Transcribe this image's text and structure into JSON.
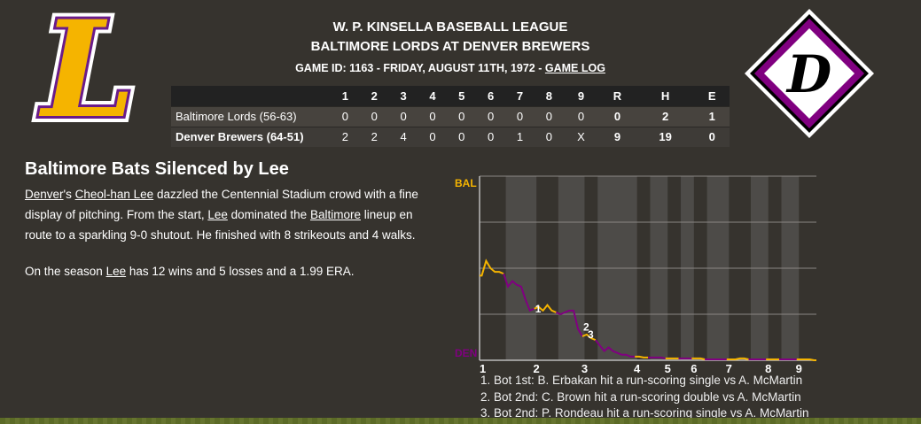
{
  "header": {
    "league": "W. P. KINSELLA BASEBALL LEAGUE",
    "matchup": "BALTIMORE LORDS AT DENVER BREWERS",
    "game_info": "GAME ID: 1163 - FRIDAY, AUGUST 11TH, 1972 - ",
    "game_log_link": "GAME LOG"
  },
  "logos": {
    "away": "L",
    "home": "D"
  },
  "colors": {
    "away": "#f5b400",
    "home": "#800080",
    "background": "#36332e"
  },
  "linescore": {
    "columns": [
      "",
      "1",
      "2",
      "3",
      "4",
      "5",
      "6",
      "7",
      "8",
      "9",
      "R",
      "H",
      "E"
    ],
    "rows": [
      {
        "team": "Baltimore Lords (56-63)",
        "innings": [
          "0",
          "0",
          "0",
          "0",
          "0",
          "0",
          "0",
          "0",
          "0"
        ],
        "R": "0",
        "H": "2",
        "E": "1"
      },
      {
        "team": "Denver Brewers (64-51)",
        "innings": [
          "2",
          "2",
          "4",
          "0",
          "0",
          "0",
          "1",
          "0",
          "X"
        ],
        "R": "9",
        "H": "19",
        "E": "0"
      }
    ]
  },
  "story": {
    "headline": "Baltimore Bats Silenced by Lee",
    "p1": {
      "a": "Denver",
      "b": "'s ",
      "c": "Cheol-han Lee",
      "d": " dazzled the Centennial Stadium crowd with a fine display of pitching. From the start, ",
      "e": "Lee",
      "f": " dominated the ",
      "g": "Baltimore",
      "h": " lineup en route to a sparkling 9-0 shutout. He finished with 8 strikeouts and 4 walks."
    },
    "p2": {
      "a": "On the season ",
      "b": "Lee",
      "c": " has 12 wins and 5 losses and a 1.99 ERA."
    }
  },
  "chart_data": {
    "type": "line",
    "title": "",
    "y_top_label": "BAL",
    "y_bottom_label": "DEN",
    "ylim": [
      0,
      1
    ],
    "grid": true,
    "x_tick_labels": [
      "1",
      "2",
      "3",
      "4",
      "5",
      "6",
      "7",
      "8",
      "9"
    ],
    "half_innings": [
      {
        "inning": 1,
        "half": "top",
        "wp": [
          0.46,
          0.54,
          0.5,
          0.48,
          0.48,
          0.47
        ]
      },
      {
        "inning": 1,
        "half": "bottom",
        "wp": [
          0.4,
          0.43,
          0.41,
          0.4,
          0.33,
          0.27,
          0.28
        ]
      },
      {
        "inning": 2,
        "half": "top",
        "wp": [
          0.29,
          0.27,
          0.3,
          0.27,
          0.26
        ]
      },
      {
        "inning": 2,
        "half": "bottom",
        "wp": [
          0.25,
          0.26,
          0.27,
          0.27,
          0.17,
          0.13
        ]
      },
      {
        "inning": 3,
        "half": "top",
        "wp": [
          0.14,
          0.12,
          0.11
        ]
      },
      {
        "inning": 3,
        "half": "bottom",
        "wp": [
          0.08,
          0.05,
          0.07,
          0.05,
          0.04,
          0.03,
          0.03,
          0.02,
          0.02
        ]
      },
      {
        "inning": 4,
        "half": "top",
        "wp": [
          0.02,
          0.015,
          0.015
        ]
      },
      {
        "inning": 4,
        "half": "bottom",
        "wp": [
          0.015,
          0.015,
          0.015,
          0.01
        ]
      },
      {
        "inning": 5,
        "half": "top",
        "wp": [
          0.01,
          0.01,
          0.01
        ]
      },
      {
        "inning": 5,
        "half": "bottom",
        "wp": [
          0.01,
          0.01,
          0.01
        ]
      },
      {
        "inning": 6,
        "half": "top",
        "wp": [
          0.01,
          0.01,
          0.005
        ]
      },
      {
        "inning": 6,
        "half": "bottom",
        "wp": [
          0.005,
          0.005,
          0.005,
          0.005,
          0.005
        ]
      },
      {
        "inning": 7,
        "half": "top",
        "wp": [
          0.005,
          0.005,
          0.01,
          0.01,
          0.005
        ]
      },
      {
        "inning": 7,
        "half": "bottom",
        "wp": [
          0.005,
          0.005,
          0.005,
          0.005
        ]
      },
      {
        "inning": 8,
        "half": "top",
        "wp": [
          0.005,
          0.005,
          0.005
        ]
      },
      {
        "inning": 8,
        "half": "bottom",
        "wp": [
          0.005,
          0.005,
          0.005,
          0.005
        ]
      },
      {
        "inning": 9,
        "half": "top",
        "wp": [
          0.005,
          0.005,
          0.005,
          0.0
        ]
      }
    ],
    "annotations": [
      {
        "label": "1",
        "half_index": 1,
        "event": 5
      },
      {
        "label": "2",
        "half_index": 3,
        "event": 4
      },
      {
        "label": "3",
        "half_index": 3,
        "event": 5
      }
    ],
    "notes": [
      "1. Bot 1st: B. Erbakan hit a run-scoring single vs A. McMartin",
      "2. Bot 2nd: C. Brown hit a run-scoring double vs A. McMartin",
      "3. Bot 2nd: P. Rondeau hit a run-scoring single vs A. McMartin"
    ]
  }
}
